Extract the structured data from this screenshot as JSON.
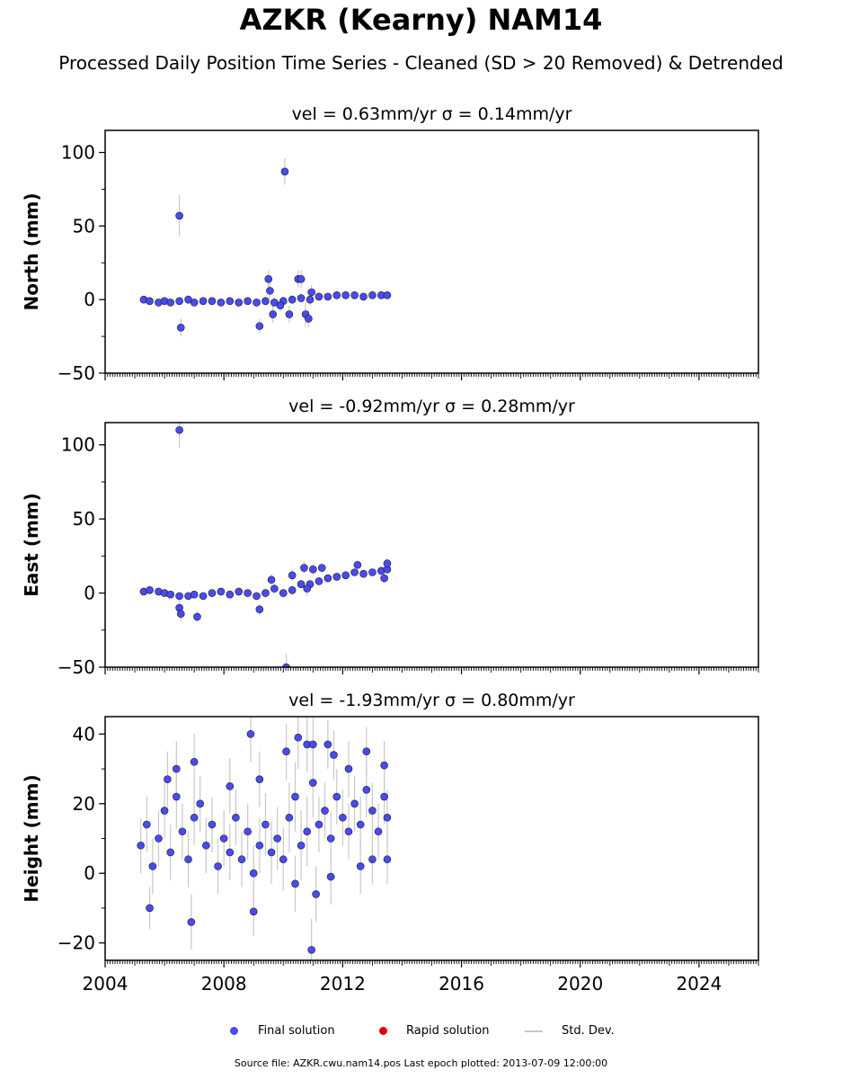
{
  "figure": {
    "title": "AZKR (Kearny) NAM14",
    "subtitle": "Processed Daily Position Time Series - Cleaned (SD > 20 Removed) & Detrended",
    "source_note": "Source file: AZKR.cwu.nam14.pos  Last epoch plotted: 2013-07-09 12:00:00"
  },
  "legend": {
    "final_label": "Final solution",
    "rapid_label": "Rapid solution",
    "std_label": "Std. Dev.",
    "final_color": "#4a4af5",
    "rapid_color": "#e00000",
    "std_color": "#c8c8c8"
  },
  "chart_data": [
    {
      "type": "scatter",
      "title": "vel = 0.63mm/yr   σ = 0.14mm/yr",
      "ylabel": "North (mm)",
      "xlim": [
        2004,
        2026
      ],
      "ylim": [
        -50,
        115
      ],
      "yticks": [
        -50,
        0,
        50,
        100
      ],
      "ytick_labels": [
        "−50",
        "0",
        "50",
        "100"
      ],
      "series": [
        {
          "marker_color": "#4a4af5",
          "points": [
            [
              2005.3,
              0,
              2
            ],
            [
              2005.5,
              -1,
              2
            ],
            [
              2005.8,
              -2,
              2
            ],
            [
              2006.0,
              -1,
              2
            ],
            [
              2006.2,
              -2,
              2
            ],
            [
              2006.5,
              -1,
              2
            ],
            [
              2006.8,
              0,
              3
            ],
            [
              2007.0,
              -2,
              2
            ],
            [
              2007.3,
              -1,
              2
            ],
            [
              2007.6,
              -1,
              2
            ],
            [
              2007.9,
              -2,
              2
            ],
            [
              2008.2,
              -1,
              2
            ],
            [
              2008.5,
              -2,
              2
            ],
            [
              2008.8,
              -1,
              2
            ],
            [
              2009.1,
              -2,
              2
            ],
            [
              2009.4,
              -1,
              3
            ],
            [
              2009.7,
              -2,
              3
            ],
            [
              2010.0,
              -1,
              3
            ],
            [
              2010.3,
              0,
              3
            ],
            [
              2010.6,
              1,
              3
            ],
            [
              2010.9,
              0,
              4
            ],
            [
              2011.2,
              2,
              2
            ],
            [
              2011.5,
              2,
              2
            ],
            [
              2011.8,
              3,
              2
            ],
            [
              2012.1,
              3,
              2
            ],
            [
              2012.4,
              3,
              2
            ],
            [
              2012.7,
              2,
              2
            ],
            [
              2013.0,
              3,
              2
            ],
            [
              2013.3,
              3,
              2
            ],
            [
              2013.5,
              3,
              2
            ],
            [
              2006.5,
              57,
              14
            ],
            [
              2006.55,
              -19,
              6
            ],
            [
              2010.05,
              87,
              9
            ],
            [
              2009.2,
              -18,
              5
            ],
            [
              2009.5,
              14,
              6
            ],
            [
              2009.55,
              6,
              5
            ],
            [
              2009.65,
              -10,
              6
            ],
            [
              2010.5,
              14,
              6
            ],
            [
              2010.6,
              14,
              6
            ],
            [
              2010.75,
              -10,
              8
            ],
            [
              2010.85,
              -13,
              6
            ],
            [
              2010.95,
              5,
              5
            ],
            [
              2010.2,
              -10,
              6
            ],
            [
              2009.9,
              -4,
              4
            ]
          ]
        }
      ]
    },
    {
      "type": "scatter",
      "title": "vel = -0.92mm/yr   σ = 0.28mm/yr",
      "ylabel": "East (mm)",
      "xlim": [
        2004,
        2026
      ],
      "ylim": [
        -50,
        115
      ],
      "yticks": [
        -50,
        0,
        50,
        100
      ],
      "ytick_labels": [
        "−50",
        "0",
        "50",
        "100"
      ],
      "series": [
        {
          "marker_color": "#4a4af5",
          "points": [
            [
              2005.3,
              1,
              2
            ],
            [
              2005.5,
              2,
              2
            ],
            [
              2005.8,
              1,
              2
            ],
            [
              2006.0,
              0,
              2
            ],
            [
              2006.2,
              -1,
              2
            ],
            [
              2006.5,
              -2,
              2
            ],
            [
              2006.8,
              -2,
              2
            ],
            [
              2007.0,
              -1,
              2
            ],
            [
              2007.3,
              -2,
              2
            ],
            [
              2007.6,
              0,
              2
            ],
            [
              2007.9,
              1,
              2
            ],
            [
              2008.2,
              -1,
              2
            ],
            [
              2008.5,
              1,
              2
            ],
            [
              2008.8,
              0,
              2
            ],
            [
              2009.1,
              -2,
              2
            ],
            [
              2009.4,
              0,
              3
            ],
            [
              2009.7,
              3,
              3
            ],
            [
              2010.0,
              0,
              3
            ],
            [
              2010.3,
              2,
              3
            ],
            [
              2010.6,
              6,
              3
            ],
            [
              2010.9,
              6,
              3
            ],
            [
              2011.2,
              8,
              2
            ],
            [
              2011.5,
              10,
              2
            ],
            [
              2011.8,
              11,
              2
            ],
            [
              2012.1,
              12,
              2
            ],
            [
              2012.4,
              14,
              2
            ],
            [
              2012.7,
              13,
              2
            ],
            [
              2013.0,
              14,
              2
            ],
            [
              2013.3,
              15,
              2
            ],
            [
              2013.5,
              16,
              3
            ],
            [
              2006.5,
              110,
              12
            ],
            [
              2006.5,
              -10,
              5
            ],
            [
              2006.55,
              -14,
              5
            ],
            [
              2007.1,
              -16,
              4
            ],
            [
              2010.1,
              -50,
              9
            ],
            [
              2009.2,
              -11,
              4
            ],
            [
              2009.6,
              9,
              4
            ],
            [
              2010.3,
              12,
              4
            ],
            [
              2010.7,
              17,
              4
            ],
            [
              2011.0,
              16,
              4
            ],
            [
              2010.8,
              3,
              5
            ],
            [
              2011.3,
              17,
              3
            ],
            [
              2012.5,
              19,
              3
            ],
            [
              2013.5,
              20,
              3
            ],
            [
              2013.4,
              10,
              3
            ]
          ]
        }
      ]
    },
    {
      "type": "scatter",
      "title": "vel = -1.93mm/yr   σ = 0.80mm/yr",
      "ylabel": "Height (mm)",
      "xlim": [
        2004,
        2026
      ],
      "ylim": [
        -25,
        45
      ],
      "yticks": [
        -20,
        0,
        20,
        40
      ],
      "ytick_labels": [
        "−20",
        "0",
        "20",
        "40"
      ],
      "xticks": [
        2004,
        2008,
        2012,
        2016,
        2020,
        2024
      ],
      "xtick_labels": [
        "2004",
        "2008",
        "2012",
        "2016",
        "2020",
        "2024"
      ],
      "series": [
        {
          "marker_color": "#4a4af5",
          "points": [
            [
              2005.2,
              8,
              8
            ],
            [
              2005.4,
              14,
              8
            ],
            [
              2005.6,
              2,
              8
            ],
            [
              2005.8,
              10,
              8
            ],
            [
              2006.0,
              18,
              8
            ],
            [
              2006.2,
              6,
              8
            ],
            [
              2006.4,
              22,
              9
            ],
            [
              2006.6,
              12,
              8
            ],
            [
              2006.8,
              4,
              8
            ],
            [
              2007.0,
              16,
              8
            ],
            [
              2007.2,
              20,
              8
            ],
            [
              2007.4,
              8,
              8
            ],
            [
              2007.6,
              14,
              8
            ],
            [
              2007.8,
              2,
              8
            ],
            [
              2008.0,
              10,
              8
            ],
            [
              2008.2,
              6,
              8
            ],
            [
              2008.4,
              16,
              8
            ],
            [
              2008.6,
              4,
              8
            ],
            [
              2008.8,
              12,
              8
            ],
            [
              2009.0,
              0,
              8
            ],
            [
              2009.2,
              8,
              8
            ],
            [
              2009.4,
              14,
              9
            ],
            [
              2009.6,
              6,
              9
            ],
            [
              2009.8,
              10,
              9
            ],
            [
              2010.0,
              4,
              9
            ],
            [
              2010.2,
              16,
              10
            ],
            [
              2010.4,
              22,
              10
            ],
            [
              2010.6,
              8,
              10
            ],
            [
              2010.8,
              12,
              10
            ],
            [
              2011.0,
              26,
              10
            ],
            [
              2011.2,
              14,
              8
            ],
            [
              2011.4,
              18,
              8
            ],
            [
              2011.6,
              10,
              8
            ],
            [
              2011.8,
              22,
              8
            ],
            [
              2012.0,
              16,
              8
            ],
            [
              2012.2,
              12,
              8
            ],
            [
              2012.4,
              20,
              8
            ],
            [
              2012.6,
              14,
              8
            ],
            [
              2012.8,
              24,
              8
            ],
            [
              2013.0,
              18,
              8
            ],
            [
              2013.2,
              12,
              8
            ],
            [
              2013.4,
              22,
              8
            ],
            [
              2013.5,
              16,
              8
            ],
            [
              2005.5,
              -10,
              6
            ],
            [
              2006.9,
              -14,
              8
            ],
            [
              2008.9,
              40,
              8
            ],
            [
              2010.1,
              35,
              8
            ],
            [
              2010.5,
              39,
              9
            ],
            [
              2010.8,
              37,
              8
            ],
            [
              2011.0,
              37,
              8
            ],
            [
              2010.95,
              -22,
              9
            ],
            [
              2011.5,
              37,
              7
            ],
            [
              2011.7,
              34,
              7
            ],
            [
              2012.8,
              35,
              7
            ],
            [
              2013.4,
              31,
              7
            ],
            [
              2011.1,
              -6,
              8
            ],
            [
              2009.0,
              -11,
              7
            ],
            [
              2007.0,
              32,
              8
            ],
            [
              2006.4,
              30,
              8
            ],
            [
              2009.2,
              27,
              8
            ],
            [
              2010.4,
              -3,
              8
            ],
            [
              2011.6,
              -1,
              8
            ],
            [
              2012.6,
              2,
              8
            ],
            [
              2013.0,
              4,
              7
            ],
            [
              2013.5,
              4,
              7
            ],
            [
              2008.2,
              25,
              8
            ],
            [
              2006.1,
              27,
              8
            ],
            [
              2012.2,
              30,
              8
            ]
          ]
        }
      ]
    }
  ]
}
